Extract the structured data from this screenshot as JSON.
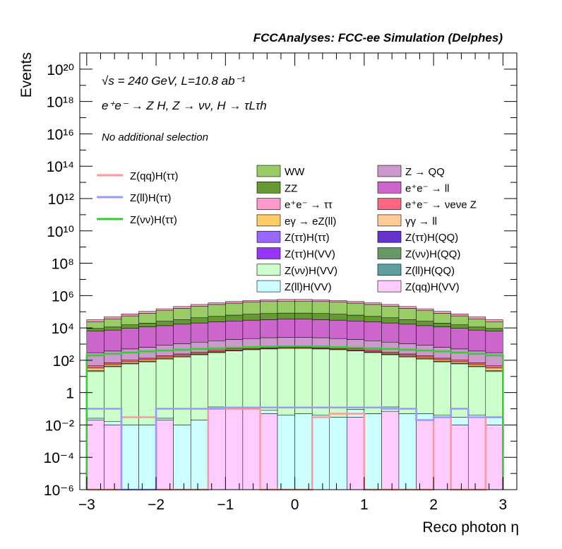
{
  "header": "FCCAnalyses: FCC-ee Simulation (Delphes)",
  "annotations": {
    "energy_line": "√s = 240 GeV, L=10.8 ab⁻¹",
    "process": "e⁺e⁻ → Z H, Z → νν, H → τLτh",
    "selection": "No additional selection"
  },
  "chart_data": {
    "type": "bar",
    "ylabel": "Events",
    "xlabel": "Reco photon η",
    "xlim": [
      -3.1,
      3.2
    ],
    "ylim": [
      1e-06,
      1e+21
    ],
    "yscale": "log",
    "x_ticks": [
      "−3",
      "−2",
      "−1",
      "0",
      "1",
      "2",
      "3"
    ],
    "y_ticks": [
      "10⁻⁶",
      "10⁻⁴",
      "10⁻²",
      "1",
      "10²",
      "10⁴",
      "10⁶",
      "10⁸",
      "10¹⁰",
      "10¹²",
      "10¹⁴",
      "10¹⁶",
      "10¹⁸",
      "10²⁰"
    ],
    "bin_edges": [
      -3.0,
      -2.75,
      -2.5,
      -2.25,
      -2.0,
      -1.75,
      -1.5,
      -1.25,
      -1.0,
      -0.75,
      -0.5,
      -0.25,
      0.0,
      0.25,
      0.5,
      0.75,
      1.0,
      1.25,
      1.5,
      1.75,
      2.0,
      2.25,
      2.5,
      2.75,
      3.0
    ],
    "stack": [
      {
        "name": "Z(qq)H(VV)",
        "color": "#ffccff",
        "values": [
          0.02,
          0.01,
          0,
          0,
          0.02,
          0,
          0,
          0.1,
          0.1,
          0.1,
          0.05,
          0,
          0,
          0,
          0,
          0.03,
          0,
          0.07,
          0,
          0.02,
          0.03,
          0.01,
          0.03,
          0.01
        ]
      },
      {
        "name": "Z(ll)H(VV)",
        "color": "#ccffff",
        "values": [
          0.006,
          0.006,
          0.01,
          0.01,
          0.006,
          0.01,
          0.02,
          0.03,
          0.01,
          0.02,
          0.03,
          0.04,
          0.05,
          0.04,
          0.03,
          0.06,
          0.05,
          0.06,
          0.05,
          0.03,
          0.01,
          0.02,
          0.01,
          0.02
        ]
      },
      {
        "name": "Z(ll)H(QQ)",
        "color": "#5f9ea0",
        "values": [
          0,
          0,
          0,
          0,
          0,
          0,
          0,
          0,
          0,
          0,
          0,
          0,
          0,
          0,
          0,
          0,
          0.001,
          0,
          0,
          0,
          0,
          0,
          0,
          0
        ]
      },
      {
        "name": "Z(νν)H(VV)",
        "color": "#ccffcc",
        "values": [
          20,
          40,
          60,
          80,
          120,
          160,
          220,
          300,
          380,
          450,
          500,
          540,
          540,
          500,
          450,
          380,
          300,
          220,
          160,
          120,
          80,
          60,
          40,
          20
        ]
      },
      {
        "name": "Z(νν)H(QQ)",
        "color": "#669966",
        "values": [
          0.02,
          0.03,
          0.03,
          0.02,
          0.03,
          0.04,
          0.05,
          0.05,
          0.05,
          0.06,
          0.06,
          0.06,
          0.06,
          0.06,
          0.06,
          0.05,
          0.05,
          0.05,
          0.04,
          0.03,
          0.02,
          0.03,
          0.03,
          0.02
        ]
      },
      {
        "name": "Z(ττ)H(QQ)",
        "color": "#6633cc",
        "values": [
          0,
          0,
          0,
          0,
          0,
          0,
          0,
          0,
          0,
          0,
          0,
          0,
          0,
          5e-05,
          0,
          0,
          0,
          0,
          0,
          0,
          0,
          0,
          5e-05,
          0
        ]
      },
      {
        "name": "Z(ττ)H(VV)",
        "color": "#9933ff",
        "values": [
          0.1,
          0.1,
          0.12,
          0.15,
          0.15,
          0.2,
          0.25,
          0.3,
          0.35,
          0.4,
          0.4,
          0.45,
          0.45,
          0.4,
          0.4,
          0.35,
          0.3,
          0.25,
          0.2,
          0.15,
          0.15,
          0.12,
          0.1,
          0.1
        ]
      },
      {
        "name": "Z(ττ)H(ττ)",
        "color": "#9966ff",
        "values": [
          0.05,
          0.05,
          0.06,
          0.07,
          0.08,
          0.1,
          0.12,
          0.14,
          0.15,
          0.16,
          0.17,
          0.18,
          0.18,
          0.17,
          0.16,
          0.15,
          0.14,
          0.12,
          0.1,
          0.08,
          0.07,
          0.06,
          0.05,
          0.05
        ]
      },
      {
        "name": "γγ → ll",
        "color": "#ffcc99",
        "values": [
          3,
          4,
          5,
          6,
          8,
          10,
          12,
          14,
          16,
          18,
          20,
          21,
          21,
          20,
          18,
          16,
          14,
          12,
          10,
          8,
          6,
          5,
          4,
          3
        ]
      },
      {
        "name": "eγ → eZ(ll)",
        "color": "#ffcc66",
        "values": [
          10,
          12,
          16,
          20,
          25,
          30,
          35,
          40,
          45,
          50,
          55,
          58,
          58,
          55,
          50,
          45,
          40,
          35,
          30,
          25,
          20,
          16,
          12,
          10
        ]
      },
      {
        "name": "e⁺e⁻ → νeνe Z",
        "color": "#ff6680",
        "values": [
          12,
          15,
          20,
          28,
          35,
          45,
          55,
          65,
          80,
          90,
          100,
          110,
          110,
          100,
          90,
          80,
          65,
          55,
          45,
          35,
          28,
          20,
          15,
          12
        ]
      },
      {
        "name": "Z → QQ",
        "color": "#cc99cc",
        "values": [
          250,
          300,
          400,
          500,
          650,
          800,
          1000,
          1200,
          1400,
          1600,
          1800,
          1900,
          1900,
          1800,
          1600,
          1400,
          1200,
          1000,
          800,
          650,
          500,
          400,
          300,
          250
        ]
      },
      {
        "name": "e⁺e⁻ → ll",
        "color": "#cc66cc",
        "values": [
          6000,
          7000,
          9000,
          11000,
          13000,
          16000,
          19000,
          22000,
          25000,
          28000,
          30000,
          32000,
          32000,
          30000,
          28000,
          25000,
          22000,
          19000,
          16000,
          13000,
          11000,
          9000,
          7000,
          6000
        ]
      },
      {
        "name": "ZZ",
        "color": "#669933",
        "values": [
          3000,
          4000,
          6000,
          8000,
          12000,
          16000,
          22000,
          28000,
          35000,
          40000,
          45000,
          48000,
          48000,
          45000,
          40000,
          35000,
          28000,
          22000,
          16000,
          12000,
          8000,
          6000,
          4000,
          3000
        ]
      },
      {
        "name": "WW",
        "color": "#99cc66",
        "values": [
          15000,
          25000,
          40000,
          60000,
          90000,
          130000,
          180000,
          230000,
          280000,
          320000,
          350000,
          370000,
          370000,
          350000,
          320000,
          280000,
          230000,
          180000,
          130000,
          90000,
          60000,
          40000,
          25000,
          15000
        ]
      },
      {
        "name": "e⁺e⁻ → ττ",
        "color": "#ff99cc",
        "values": [
          8000,
          12000,
          18000,
          26000,
          36000,
          48000,
          60000,
          75000,
          90000,
          105000,
          118000,
          125000,
          125000,
          118000,
          105000,
          90000,
          75000,
          60000,
          48000,
          36000,
          26000,
          18000,
          12000,
          8000
        ]
      }
    ],
    "signal_lines": [
      {
        "name": "Z(qq)H(ττ)",
        "color": "#ff9999",
        "values": [
          1e-06,
          1e-06,
          0.03,
          0.03,
          1e-06,
          1e-06,
          1e-06,
          0.1,
          0.1,
          0.1,
          1e-06,
          1e-06,
          1e-06,
          0.03,
          0.05,
          0.05,
          1e-06,
          1e-06,
          1e-06,
          1e-06,
          0.03,
          1e-06,
          1e-06,
          0.03
        ]
      },
      {
        "name": "Z(ll)H(ττ)",
        "color": "#9999ff",
        "values": [
          0.1,
          0.1,
          1e-06,
          1e-06,
          0.1,
          0.1,
          0.1,
          0.1,
          0.12,
          0.12,
          0.12,
          0.12,
          0.12,
          0.12,
          0.12,
          0.12,
          0.12,
          0.1,
          0.1,
          0.02,
          0.03,
          0.1,
          0.03,
          0.03
        ]
      },
      {
        "name": "Z(νν)H(ττ)",
        "color": "#33cc33",
        "values": [
          200,
          250,
          300,
          350,
          400,
          450,
          500,
          550,
          600,
          650,
          700,
          720,
          720,
          700,
          650,
          600,
          550,
          500,
          450,
          400,
          350,
          300,
          250,
          200
        ]
      }
    ],
    "legend_placement": "top"
  }
}
